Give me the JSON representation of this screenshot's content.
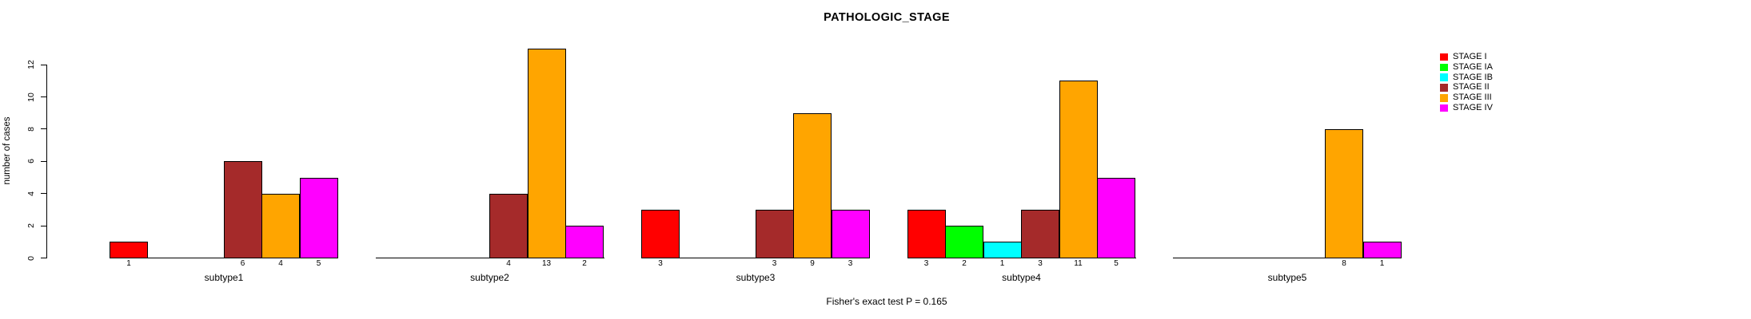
{
  "chart_data": {
    "type": "bar",
    "title": "PATHOLOGIC_STAGE",
    "ylabel": "number of cases",
    "xlabel": "",
    "footer": "Fisher's exact test P = 0.165",
    "yticks": [
      0,
      2,
      4,
      6,
      8,
      10,
      12
    ],
    "ylim": [
      0,
      13
    ],
    "grid": false,
    "legend_position": "top-right",
    "bar_value_labels": "shown under each nonzero bar",
    "categories": [
      "subtype1",
      "subtype2",
      "subtype3",
      "subtype4",
      "subtype5"
    ],
    "series": [
      {
        "name": "STAGE I",
        "color": "#FF0000",
        "values": [
          1,
          0,
          3,
          3,
          0
        ]
      },
      {
        "name": "STAGE IA",
        "color": "#00FF00",
        "values": [
          0,
          0,
          0,
          2,
          0
        ]
      },
      {
        "name": "STAGE IB",
        "color": "#00FFFF",
        "values": [
          0,
          0,
          0,
          1,
          0
        ]
      },
      {
        "name": "STAGE II",
        "color": "#A52A2A",
        "values": [
          6,
          4,
          3,
          3,
          0
        ]
      },
      {
        "name": "STAGE III",
        "color": "#FFA500",
        "values": [
          4,
          13,
          9,
          11,
          8
        ]
      },
      {
        "name": "STAGE IV",
        "color": "#FF00FF",
        "values": [
          5,
          2,
          3,
          5,
          1
        ]
      }
    ]
  }
}
